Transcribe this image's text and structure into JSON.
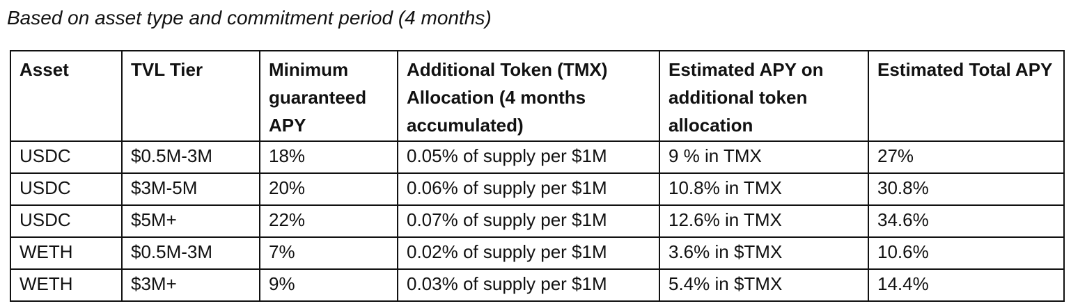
{
  "caption": "Based on asset type and commitment period (4 months)",
  "table": {
    "headers": [
      "Asset",
      "TVL Tier",
      "Minimum guaranteed APY",
      "Additional Token (TMX) Allocation (4 months accumulated)",
      "Estimated APY on additional token allocation",
      "Estimated Total APY"
    ],
    "rows": [
      [
        "USDC",
        "$0.5M-3M",
        "18%",
        "0.05% of supply per $1M",
        "9 % in TMX",
        "27%"
      ],
      [
        "USDC",
        "$3M-5M",
        "20%",
        "0.06% of supply per $1M",
        "10.8% in TMX",
        "30.8%"
      ],
      [
        "USDC",
        "$5M+",
        "22%",
        "0.07% of supply per $1M",
        "12.6% in TMX",
        "34.6%"
      ],
      [
        "WETH",
        "$0.5M-3M",
        "7%",
        "0.02% of supply per $1M",
        "3.6% in $TMX",
        "10.6%"
      ],
      [
        "WETH",
        "$3M+",
        "9%",
        "0.03% of supply per $1M",
        "5.4% in $TMX",
        "14.4%"
      ]
    ]
  }
}
